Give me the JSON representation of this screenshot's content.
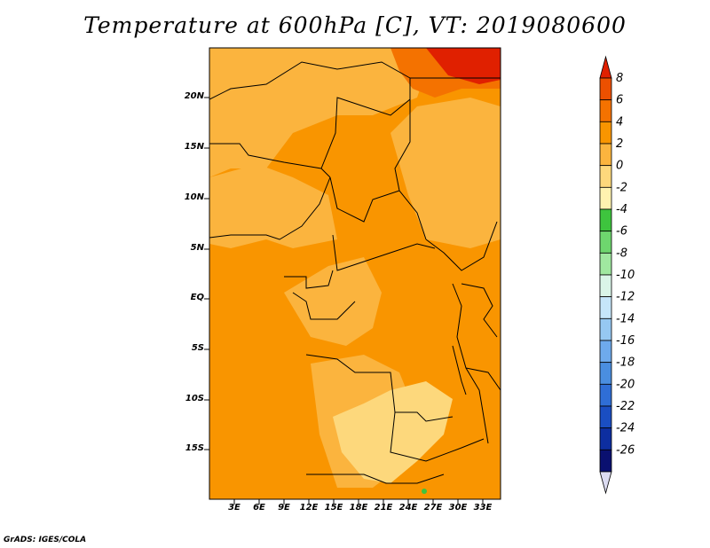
{
  "title": "Temperature at 600hPa [C], VT: 2019080600",
  "credit": "GrADS: IGES/COLA",
  "lat_labels": [
    "20N",
    "15N",
    "10N",
    "5N",
    "EQ",
    "5S",
    "10S",
    "15S"
  ],
  "lon_labels": [
    "3E",
    "6E",
    "9E",
    "12E",
    "15E",
    "18E",
    "21E",
    "24E",
    "27E",
    "30E",
    "33E"
  ],
  "colorbar": {
    "labels": [
      "8",
      "6",
      "4",
      "2",
      "0",
      "-2",
      "-4",
      "-6",
      "-8",
      "-10",
      "-12",
      "-14",
      "-16",
      "-18",
      "-20",
      "-22",
      "-24",
      "-26"
    ],
    "colors": [
      "#e02000",
      "#ec5000",
      "#f47200",
      "#f99500",
      "#fbb43e",
      "#fdd87c",
      "#fff3b0",
      "#3ec43e",
      "#6ed66e",
      "#a0e8a0",
      "#daf5e8",
      "#c6e6fa",
      "#96c8f2",
      "#6eaaec",
      "#4a8ee0",
      "#2f6ed6",
      "#1a4ec2",
      "#0d2ea0",
      "#0a1070",
      "#dcdcf2"
    ]
  },
  "map_fill_colors": {
    "base": "#f99500",
    "warm": "#fbb43e",
    "cool": "#fdd87c",
    "hot": "#f47200",
    "hottest": "#e02000",
    "green": "#3ec43e"
  }
}
